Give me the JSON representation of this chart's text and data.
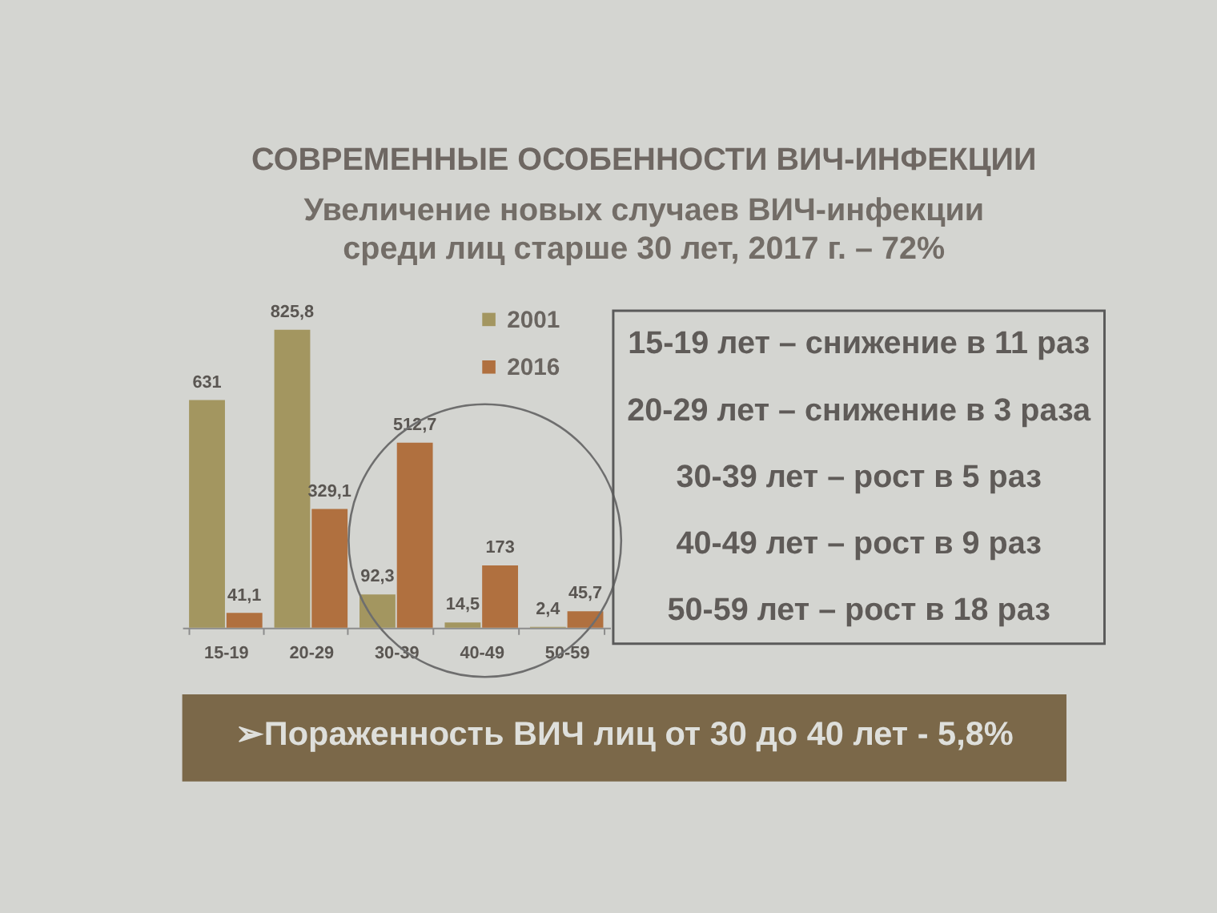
{
  "chart_data": {
    "type": "bar",
    "title": "СОВРЕМЕННЫЕ ОСОБЕННОСТИ ВИЧ-ИНФЕКЦИИ",
    "subtitle": "Увеличение новых случаев ВИЧ-инфекции\nсреди лиц старше 30 лет, 2017 г. – 72%",
    "categories": [
      "15-19",
      "20-29",
      "30-39",
      "40-49",
      "50-59"
    ],
    "series": [
      {
        "name": "2001",
        "color": "#a39660",
        "values": [
          631,
          825.8,
          92.3,
          14.5,
          2.4
        ],
        "value_labels": [
          "631",
          "825,8",
          "92,3",
          "14,5",
          "2,4"
        ]
      },
      {
        "name": "2016",
        "color": "#b0703f",
        "values": [
          41.1,
          329.1,
          512.7,
          173,
          45.7
        ],
        "value_labels": [
          "41,1",
          "329,1",
          "512,7",
          "173",
          "45,7"
        ]
      }
    ],
    "legend": "top right",
    "annotations": [
      "15-19 лет – снижение в 11 раз",
      "20-29 лет – снижение в 3 раза",
      "30-39 лет – рост в 5 раз",
      "40-49 лет – рост в 9 раз",
      "50-59 лет – рост в 18 раз",
      "➢Пораженность  ВИЧ лиц от 30 до 40 лет -  5,8%"
    ]
  }
}
